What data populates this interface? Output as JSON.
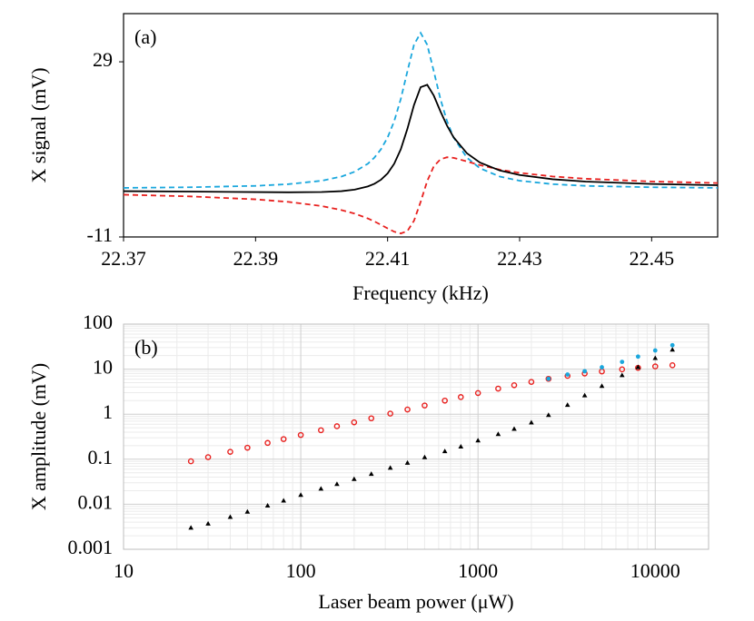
{
  "chart_data": [
    {
      "type": "line",
      "annotation": "(a)",
      "xlabel": "Frequency (kHz)",
      "ylabel": "X signal (mV)",
      "xlim": [
        22.37,
        22.46
      ],
      "xticks": [
        22.37,
        22.39,
        22.41,
        22.43,
        22.45
      ],
      "ylim": [
        -11,
        40
      ],
      "yticks": [
        -11,
        29
      ],
      "grid": false,
      "log_x": false,
      "log_y": false,
      "x": [
        22.37,
        22.38,
        22.39,
        22.395,
        22.4,
        22.403,
        22.405,
        22.407,
        22.408,
        22.409,
        22.41,
        22.411,
        22.412,
        22.413,
        22.414,
        22.415,
        22.416,
        22.417,
        22.418,
        22.419,
        22.42,
        22.422,
        22.424,
        22.427,
        22.43,
        22.435,
        22.44,
        22.45,
        22.46
      ],
      "series": [
        {
          "color": "#1aa7dd",
          "style": "dashed",
          "values": [
            0.21,
            0.35,
            0.67,
            1.06,
            1.84,
            2.79,
            3.89,
            5.72,
            7.12,
            9.04,
            11.71,
            15.44,
            20.52,
            26.83,
            32.9,
            35.6,
            32.9,
            26.83,
            20.52,
            15.44,
            11.71,
            7.12,
            4.68,
            2.79,
            1.84,
            1.06,
            0.67,
            0.35,
            0.21
          ]
        },
        {
          "color": "#e8211f",
          "style": "dashed",
          "values": [
            -1.35,
            -1.73,
            -2.41,
            -3.0,
            -3.94,
            -4.85,
            -5.66,
            -6.77,
            -7.46,
            -8.23,
            -9.04,
            -9.8,
            -10.2,
            -9.65,
            -7.3,
            -3.0,
            1.75,
            5.13,
            6.74,
            7.2,
            7.07,
            6.26,
            5.39,
            4.37,
            3.64,
            2.82,
            2.29,
            1.67,
            1.31
          ]
        },
        {
          "color": "#000000",
          "style": "solid",
          "values": [
            -0.54,
            -0.64,
            -0.75,
            -0.8,
            -0.74,
            -0.54,
            -0.19,
            0.53,
            1.14,
            2.07,
            3.51,
            5.72,
            9.03,
            13.71,
            19.13,
            23.2,
            23.75,
            21.27,
            17.69,
            14.42,
            11.75,
            8.14,
            5.99,
            4.18,
            3.14,
            2.18,
            1.65,
            1.1,
            0.82
          ]
        }
      ]
    },
    {
      "type": "scatter",
      "annotation": "(b)",
      "xlabel": "Laser beam power (μW)",
      "ylabel": "X amplitude (mV)",
      "xlim": [
        10,
        20000
      ],
      "xticks": [
        10,
        100,
        1000,
        10000
      ],
      "ylim": [
        0.001,
        100
      ],
      "yticks": [
        0.001,
        0.01,
        0.1,
        1,
        10,
        100
      ],
      "grid": true,
      "minor_grid": true,
      "log_x": true,
      "log_y": true,
      "series": [
        {
          "color": "#e8211f",
          "marker": "circle",
          "x": [
            24,
            30,
            40,
            50,
            65,
            80,
            100,
            130,
            160,
            200,
            250,
            320,
            400,
            500,
            650,
            800,
            1000,
            1300,
            1600,
            2000,
            2500,
            3200,
            4000,
            5000,
            6500,
            8000,
            10000,
            12500
          ],
          "values": [
            0.09,
            0.111,
            0.146,
            0.18,
            0.23,
            0.28,
            0.345,
            0.44,
            0.54,
            0.66,
            0.81,
            1.03,
            1.27,
            1.56,
            2.0,
            2.4,
            2.95,
            3.7,
            4.4,
            5.2,
            6.1,
            7.1,
            8.0,
            8.9,
            9.9,
            10.7,
            11.5,
            12.2
          ]
        },
        {
          "color": "#1aa7dd",
          "marker": "dot",
          "x": [
            2500,
            3200,
            4000,
            5000,
            6500,
            8000,
            10000,
            12500
          ],
          "values": [
            6.1,
            7.6,
            9.0,
            11,
            14.5,
            19,
            26,
            34
          ]
        },
        {
          "color": "#000000",
          "marker": "triangle",
          "x": [
            24,
            30,
            40,
            50,
            65,
            80,
            100,
            130,
            160,
            200,
            250,
            320,
            400,
            500,
            650,
            800,
            1000,
            1300,
            1600,
            2000,
            2500,
            3200,
            4000,
            5000,
            6500,
            8000,
            10000,
            12500
          ],
          "values": [
            0.003,
            0.0037,
            0.0052,
            0.0068,
            0.0093,
            0.012,
            0.016,
            0.022,
            0.028,
            0.036,
            0.047,
            0.064,
            0.083,
            0.11,
            0.15,
            0.19,
            0.26,
            0.36,
            0.47,
            0.65,
            0.95,
            1.6,
            2.6,
            4.2,
            7.3,
            11,
            17.5,
            27
          ]
        }
      ]
    }
  ]
}
